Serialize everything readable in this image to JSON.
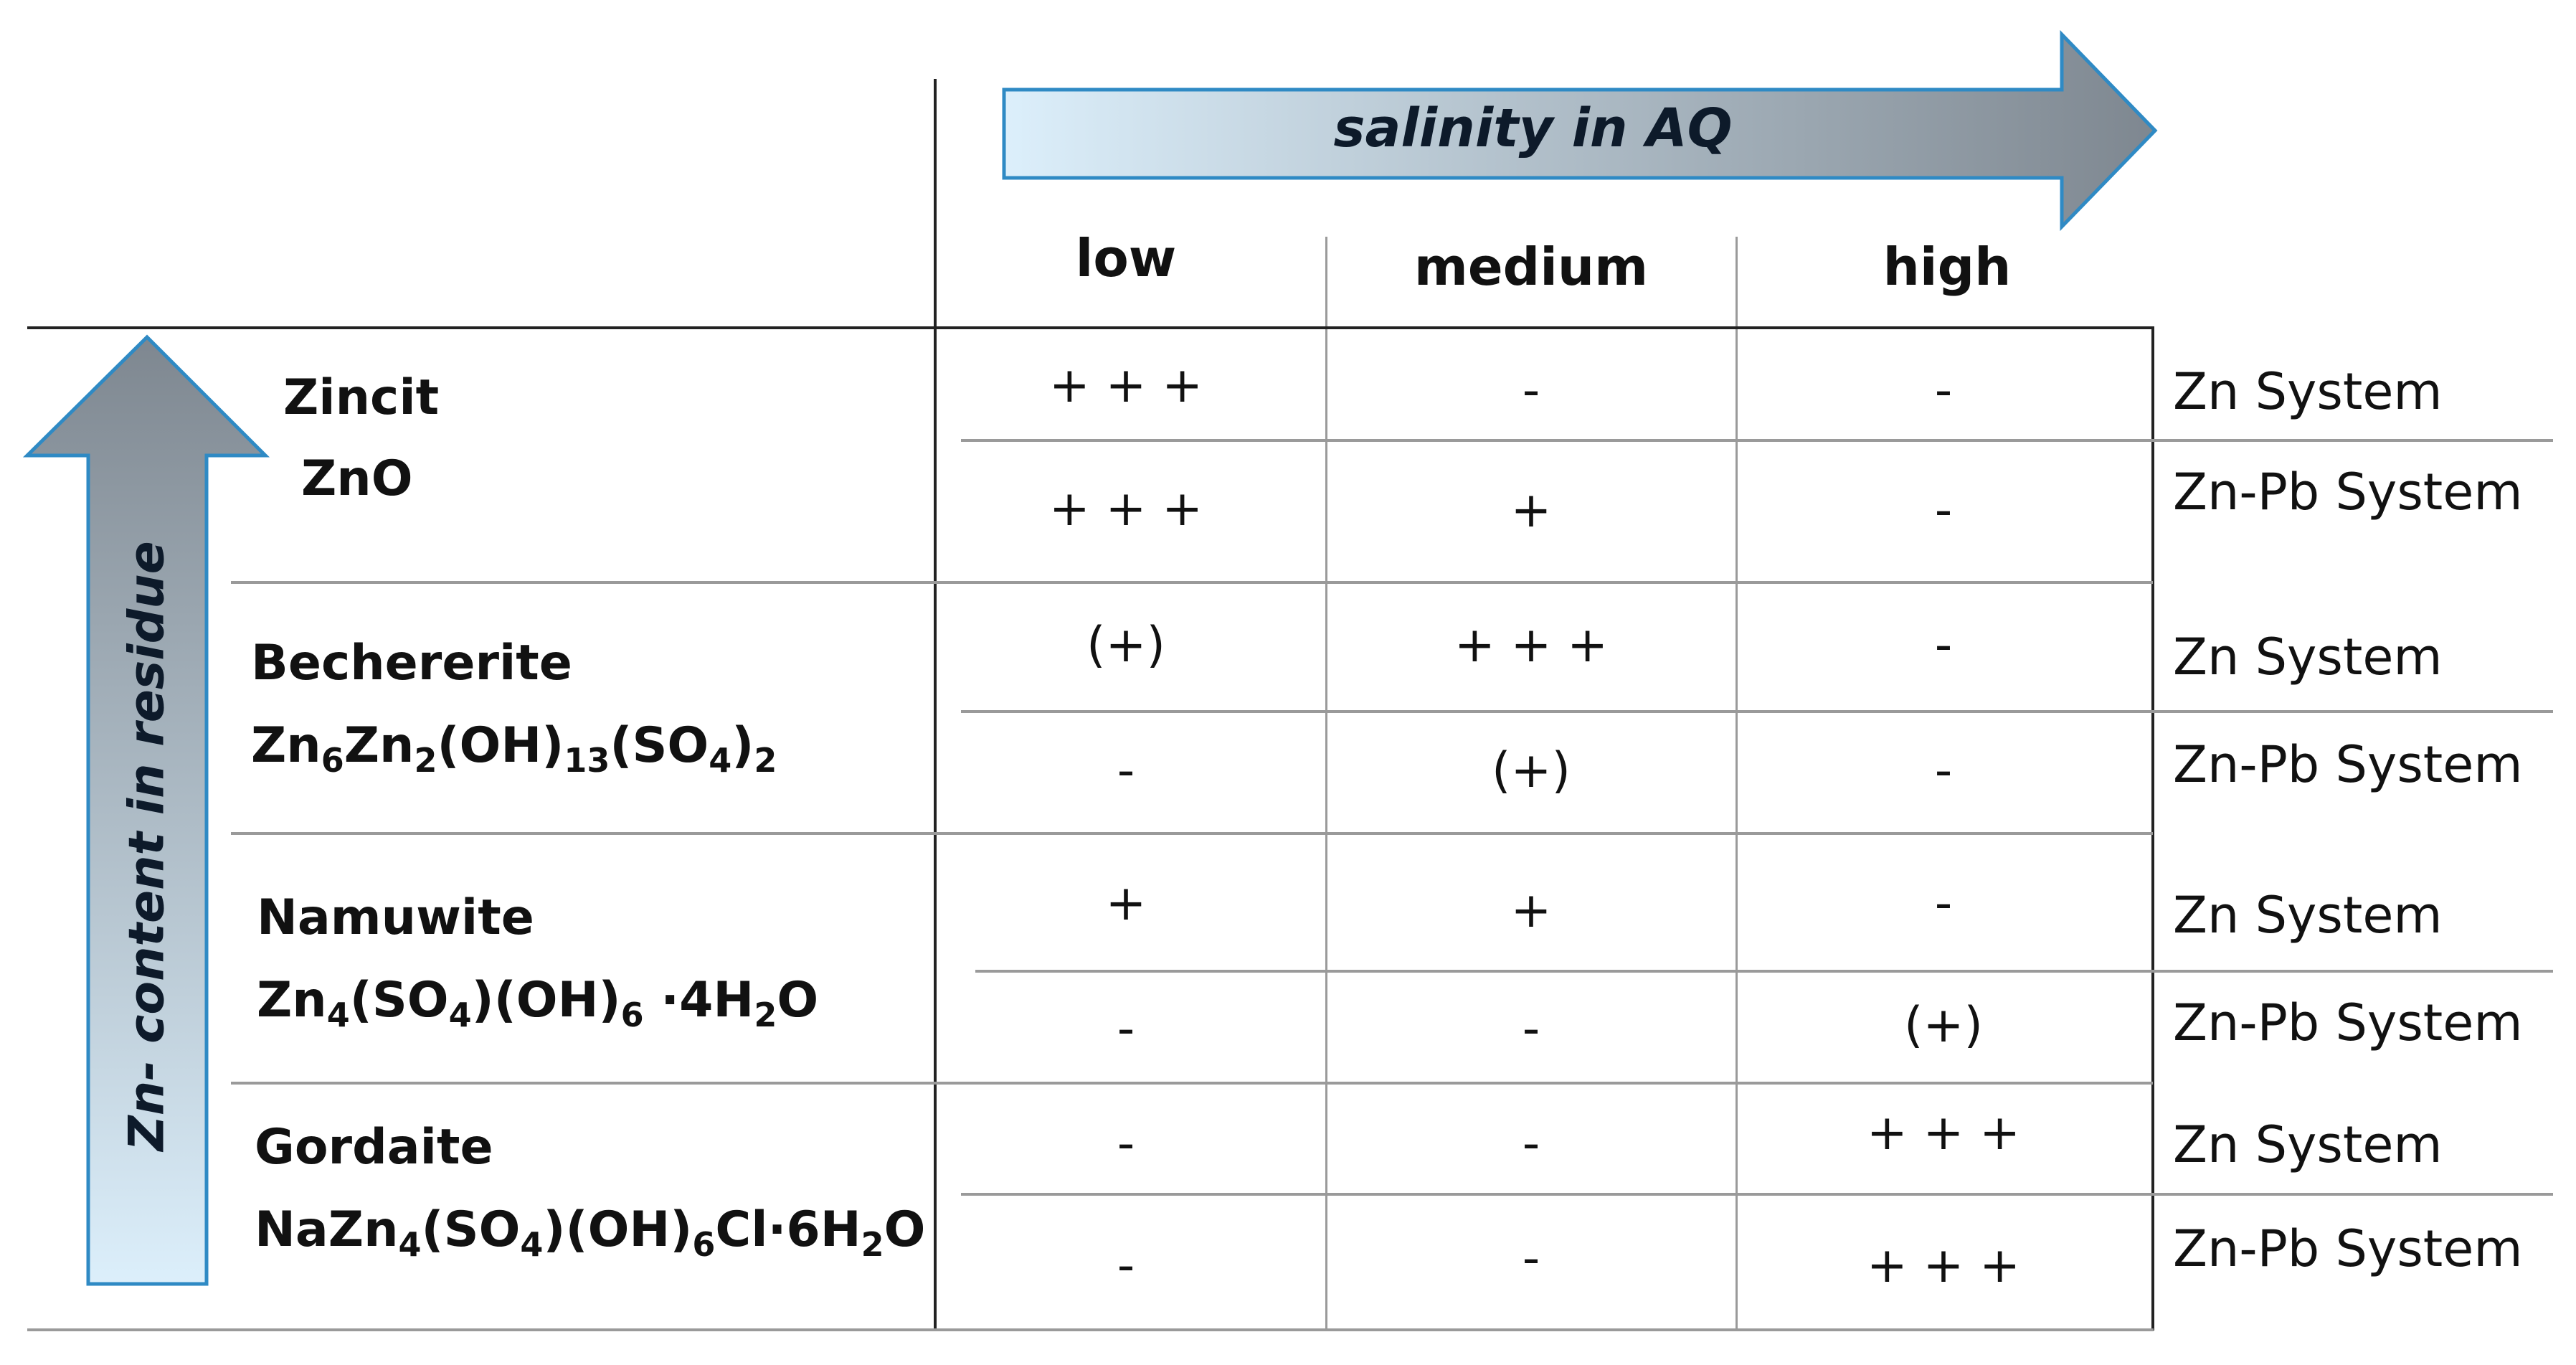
{
  "arrows": {
    "x_label": "salinity in AQ",
    "y_label": "Zn- content in residue",
    "gradient_light": "#dceffb",
    "gradient_dark": "#7e8790",
    "outline": "#2f8ac4"
  },
  "columns": [
    "low",
    "medium",
    "high"
  ],
  "minerals": [
    {
      "name": "Zincit",
      "formula": [
        "ZnO"
      ],
      "rows": [
        {
          "system": "Zn System",
          "values": [
            "+ + +",
            "-",
            "-"
          ]
        },
        {
          "system": "Zn-Pb System",
          "values": [
            "+ + +",
            "+",
            "-"
          ]
        }
      ]
    },
    {
      "name": "Bechererite",
      "formula": [
        "Zn",
        "6",
        "Zn",
        "2",
        "(OH)",
        "13",
        "(SO",
        "4",
        ")",
        "2"
      ],
      "rows": [
        {
          "system": "Zn System",
          "values": [
            "(+)",
            "+ + +",
            "-"
          ]
        },
        {
          "system": "Zn-Pb System",
          "values": [
            "-",
            "(+)",
            "-"
          ]
        }
      ]
    },
    {
      "name": "Namuwite",
      "formula": [
        "Zn",
        "4",
        "(SO",
        "4",
        ")(OH)",
        "6",
        " ·4H",
        "2",
        "O"
      ],
      "rows": [
        {
          "system": "Zn System",
          "values": [
            "+",
            "+",
            "-"
          ]
        },
        {
          "system": "Zn-Pb System",
          "values": [
            "-",
            "-",
            "(+)"
          ]
        }
      ]
    },
    {
      "name": "Gordaite",
      "formula": [
        "NaZn",
        "4",
        "(SO",
        "4",
        ")(OH)",
        "6",
        "Cl·6H",
        "2",
        "O"
      ],
      "rows": [
        {
          "system": "Zn System",
          "values": [
            "-",
            "-",
            "+ + +"
          ]
        },
        {
          "system": "Zn-Pb System",
          "values": [
            "-",
            "-",
            "+ + +"
          ]
        }
      ]
    }
  ]
}
